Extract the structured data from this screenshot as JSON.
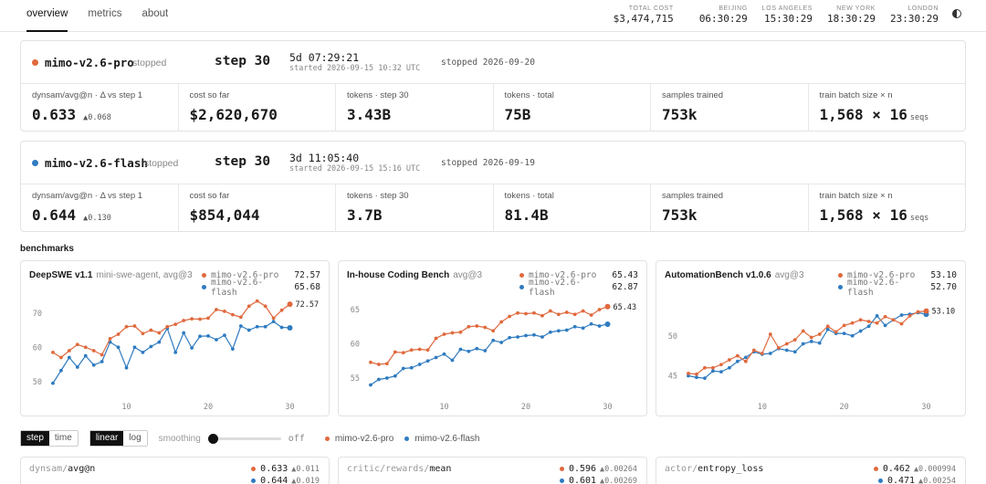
{
  "nav": {
    "items": [
      "overview",
      "metrics",
      "about"
    ]
  },
  "header": {
    "total_cost_label": "TOTAL COST",
    "total_cost": "$3,474,715",
    "clocks": [
      {
        "city": "BEIJING",
        "time": "06:30:29"
      },
      {
        "city": "LOS ANGELES",
        "time": "15:30:29"
      },
      {
        "city": "NEW YORK",
        "time": "18:30:29"
      },
      {
        "city": "LONDON",
        "time": "23:30:29"
      }
    ],
    "theme_icon": "half-circle-icon"
  },
  "colors": {
    "pro": "#e0693d",
    "flash": "#2f7bc0"
  },
  "runs": [
    {
      "name": "mimo-v2.6-pro",
      "status": "stopped",
      "step": "step 30",
      "duration": "5d 07:29:21",
      "started": "started 2026-09-15 10:32 UTC",
      "stopped": "stopped 2026-09-20",
      "stats": [
        {
          "label": "dynsam/avg@n · Δ vs step 1",
          "value": "0.633",
          "extra": "▲0.068"
        },
        {
          "label": "cost so far",
          "value": "$2,620,670",
          "extra": ""
        },
        {
          "label": "tokens · step 30",
          "value": "3.43B",
          "extra": ""
        },
        {
          "label": "tokens · total",
          "value": "75B",
          "extra": ""
        },
        {
          "label": "samples trained",
          "value": "753k",
          "extra": ""
        },
        {
          "label": "train batch size × n",
          "value": "1,568 × 16",
          "extra": "seqs"
        }
      ]
    },
    {
      "name": "mimo-v2.6-flash",
      "status": "stopped",
      "step": "step 30",
      "duration": "3d 11:05:40",
      "started": "started 2026-09-15 15:16 UTC",
      "stopped": "stopped 2026-09-19",
      "stats": [
        {
          "label": "dynsam/avg@n · Δ vs step 1",
          "value": "0.644",
          "extra": "▲0.130"
        },
        {
          "label": "cost so far",
          "value": "$854,044",
          "extra": ""
        },
        {
          "label": "tokens · step 30",
          "value": "3.7B",
          "extra": ""
        },
        {
          "label": "tokens · total",
          "value": "81.4B",
          "extra": ""
        },
        {
          "label": "samples trained",
          "value": "753k",
          "extra": ""
        },
        {
          "label": "train batch size × n",
          "value": "1,568 × 16",
          "extra": "seqs"
        }
      ]
    }
  ],
  "benchmarks_title": "benchmarks",
  "chart_data": [
    {
      "type": "line",
      "title": "DeepSWE v1.1",
      "subtitle": "mini-swe-agent, avg@3",
      "x": [
        1,
        2,
        3,
        4,
        5,
        6,
        7,
        8,
        9,
        10,
        11,
        12,
        13,
        14,
        15,
        16,
        17,
        18,
        19,
        20,
        21,
        22,
        23,
        24,
        25,
        26,
        27,
        28,
        29,
        30
      ],
      "xticks": [
        10,
        20,
        30
      ],
      "yticks": [
        50,
        60,
        70
      ],
      "ylim": [
        47,
        75
      ],
      "xlim": [
        0,
        30.5
      ],
      "series": [
        {
          "name": "mimo-v2.6-pro",
          "legend_value": "72.57",
          "end_label": "72.57",
          "values": [
            58.5,
            57.0,
            59.0,
            60.8,
            60.0,
            59.0,
            57.8,
            62.5,
            63.8,
            66.0,
            66.2,
            64.0,
            65.0,
            64.2,
            66.0,
            66.7,
            67.8,
            68.3,
            68.2,
            68.5,
            71.0,
            70.5,
            69.5,
            68.8,
            72.0,
            73.5,
            72.0,
            68.5,
            70.8,
            72.57
          ]
        },
        {
          "name": "mimo-v2.6-flash",
          "legend_value": "65.68",
          "end_label": "",
          "values": [
            49.5,
            53.2,
            57.0,
            54.2,
            57.5,
            54.8,
            55.8,
            61.5,
            60.0,
            54.0,
            60.0,
            58.5,
            60.2,
            61.5,
            65.5,
            58.5,
            64.2,
            59.8,
            63.2,
            63.3,
            62.2,
            63.5,
            59.5,
            66.2,
            65.0,
            66.0,
            66.0,
            67.5,
            65.8,
            65.68
          ]
        }
      ]
    },
    {
      "type": "line",
      "title": "In-house Coding Bench",
      "subtitle": "avg@3",
      "x": [
        1,
        2,
        3,
        4,
        5,
        6,
        7,
        8,
        9,
        10,
        11,
        12,
        13,
        14,
        15,
        16,
        17,
        18,
        19,
        20,
        21,
        22,
        23,
        24,
        25,
        26,
        27,
        28,
        29,
        30
      ],
      "xticks": [
        10,
        20,
        30
      ],
      "yticks": [
        55,
        60,
        65
      ],
      "ylim": [
        53,
        67
      ],
      "xlim": [
        0,
        30.5
      ],
      "series": [
        {
          "name": "mimo-v2.6-pro",
          "legend_value": "65.43",
          "end_label": "65.43",
          "values": [
            57.3,
            57.0,
            57.1,
            58.8,
            58.7,
            59.1,
            59.2,
            59.1,
            60.8,
            61.4,
            61.6,
            61.7,
            62.5,
            62.6,
            62.4,
            61.9,
            63.2,
            64.0,
            64.5,
            64.4,
            64.5,
            64.1,
            64.8,
            64.3,
            64.6,
            64.3,
            64.8,
            64.2,
            65.0,
            65.43
          ]
        },
        {
          "name": "mimo-v2.6-flash",
          "legend_value": "62.87",
          "end_label": "",
          "values": [
            54.0,
            54.8,
            55.0,
            55.3,
            56.4,
            56.5,
            57.0,
            57.5,
            58.0,
            58.5,
            57.6,
            59.2,
            58.9,
            59.3,
            59.0,
            60.5,
            60.2,
            60.9,
            61.0,
            61.2,
            61.3,
            61.0,
            61.7,
            61.9,
            62.0,
            62.5,
            62.3,
            62.9,
            62.6,
            62.87
          ]
        }
      ]
    },
    {
      "type": "line",
      "title": "AutomationBench v1.0.6",
      "subtitle": "avg@3",
      "x": [
        1,
        2,
        3,
        4,
        5,
        6,
        7,
        8,
        9,
        10,
        11,
        12,
        13,
        14,
        15,
        16,
        17,
        18,
        19,
        20,
        21,
        22,
        23,
        24,
        25,
        26,
        27,
        28,
        29,
        30
      ],
      "xticks": [
        10,
        20,
        30
      ],
      "yticks": [
        45,
        50
      ],
      "ylim": [
        43,
        55
      ],
      "xlim": [
        0,
        30.5
      ],
      "series": [
        {
          "name": "mimo-v2.6-pro",
          "legend_value": "53.10",
          "end_label": "53.10",
          "values": [
            45.3,
            45.2,
            46.0,
            46.0,
            46.4,
            47.0,
            47.5,
            46.8,
            48.2,
            47.8,
            50.2,
            48.5,
            49.0,
            49.5,
            50.6,
            49.8,
            50.2,
            51.2,
            50.5,
            51.3,
            51.6,
            52.0,
            51.8,
            51.6,
            52.4,
            52.0,
            51.5,
            52.5,
            53.0,
            53.1
          ]
        },
        {
          "name": "mimo-v2.6-flash",
          "legend_value": "52.70",
          "end_label": "",
          "values": [
            45.0,
            44.8,
            44.7,
            45.6,
            45.5,
            46.0,
            46.8,
            47.3,
            48.0,
            47.7,
            47.8,
            48.4,
            48.2,
            48.0,
            49.0,
            49.3,
            49.1,
            50.8,
            50.3,
            50.3,
            50.0,
            50.6,
            51.2,
            52.5,
            51.3,
            52.0,
            52.6,
            52.7,
            52.9,
            52.7
          ]
        }
      ]
    }
  ],
  "controls": {
    "x_axis": [
      "step",
      "time"
    ],
    "y_scale": [
      "linear",
      "log"
    ],
    "smoothing_label": "smoothing",
    "smoothing_value": "off",
    "legend": [
      "mimo-v2.6-pro",
      "mimo-v2.6-flash"
    ]
  },
  "metric_cards": [
    {
      "prefix": "dynsam/",
      "name": "avg@n",
      "pro": {
        "value": "0.633",
        "delta": "▲0.011"
      },
      "flash": {
        "value": "0.644",
        "delta": "▲0.019"
      }
    },
    {
      "prefix": "critic/rewards/",
      "name": "mean",
      "pro": {
        "value": "0.596",
        "delta": "▲0.00264"
      },
      "flash": {
        "value": "0.601",
        "delta": "▲0.00269"
      }
    },
    {
      "prefix": "actor/",
      "name": "entropy_loss",
      "pro": {
        "value": "0.462",
        "delta": "▲0.000994"
      },
      "flash": {
        "value": "0.471",
        "delta": "▲0.00254"
      }
    }
  ]
}
